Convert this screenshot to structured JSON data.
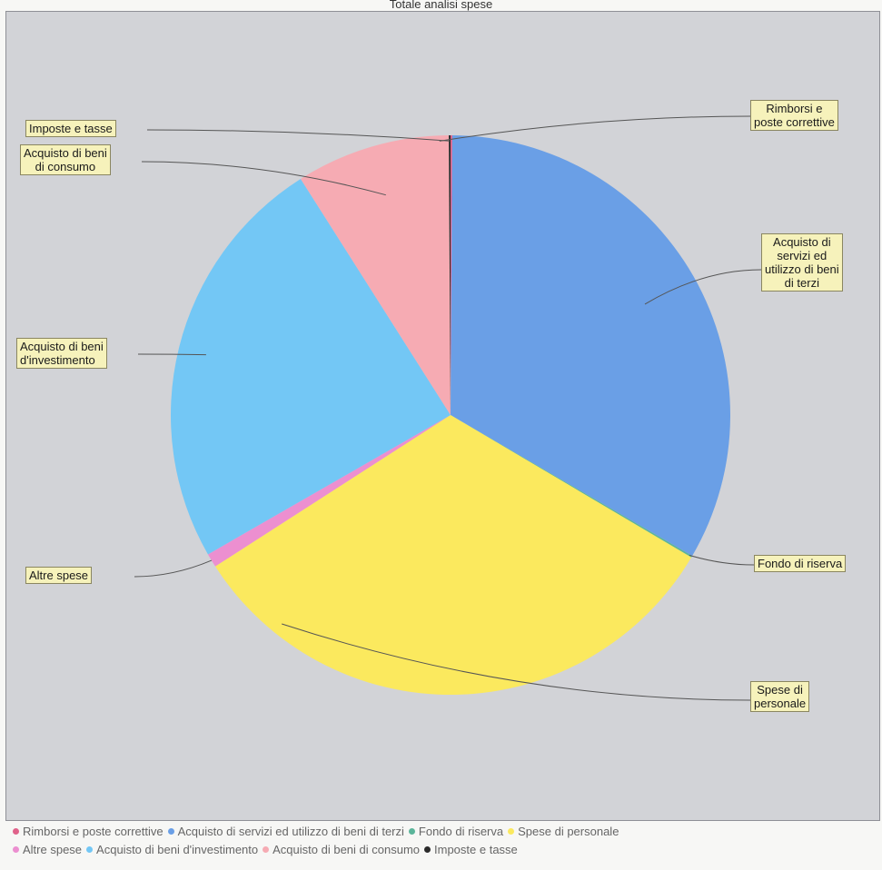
{
  "chart_data": {
    "type": "pie",
    "title": "Totale analisi spese",
    "start_angle_deg": 0,
    "direction": "clockwise",
    "slices": [
      {
        "label": "Rimborsi e poste correttive",
        "value": 0.1,
        "color": "#e0628a"
      },
      {
        "label": "Acquisto di servizi ed utilizzo di beni di terzi",
        "value": 33.3,
        "color": "#6a9fe6"
      },
      {
        "label": "Fondo di riserva",
        "value": 0.1,
        "color": "#5bb59a"
      },
      {
        "label": "Spese di personale",
        "value": 32.4,
        "color": "#fbe95e"
      },
      {
        "label": "Altre spese",
        "value": 0.8,
        "color": "#ec8fd0"
      },
      {
        "label": "Acquisto di beni d'investimento",
        "value": 24.3,
        "color": "#73c7f5"
      },
      {
        "label": "Acquisto di beni di consumo",
        "value": 8.9,
        "color": "#f6abb3"
      },
      {
        "label": "Imposte e tasse",
        "value": 0.1,
        "color": "#2b2b2b"
      }
    ],
    "callouts": [
      {
        "label": "Rimborsi e poste correttive",
        "lines": [
          "Rimborsi e",
          "poste correttive"
        ]
      },
      {
        "label": "Acquisto di servizi ed utilizzo di beni di terzi",
        "lines": [
          "Acquisto di",
          "servizi ed",
          "utilizzo di beni",
          "di terzi"
        ]
      },
      {
        "label": "Fondo di riserva",
        "lines": [
          "Fondo di riserva"
        ]
      },
      {
        "label": "Spese di personale",
        "lines": [
          "Spese di",
          "personale"
        ]
      },
      {
        "label": "Altre spese",
        "lines": [
          "Altre spese"
        ]
      },
      {
        "label": "Acquisto di beni d'investimento",
        "lines": [
          "Acquisto di beni",
          "d'investimento"
        ]
      },
      {
        "label": "Acquisto di beni di consumo",
        "lines": [
          "Acquisto di beni",
          "di consumo"
        ]
      },
      {
        "label": "Imposte e tasse",
        "lines": [
          "Imposte e tasse"
        ]
      }
    ],
    "legend": {
      "position": "bottom"
    }
  }
}
